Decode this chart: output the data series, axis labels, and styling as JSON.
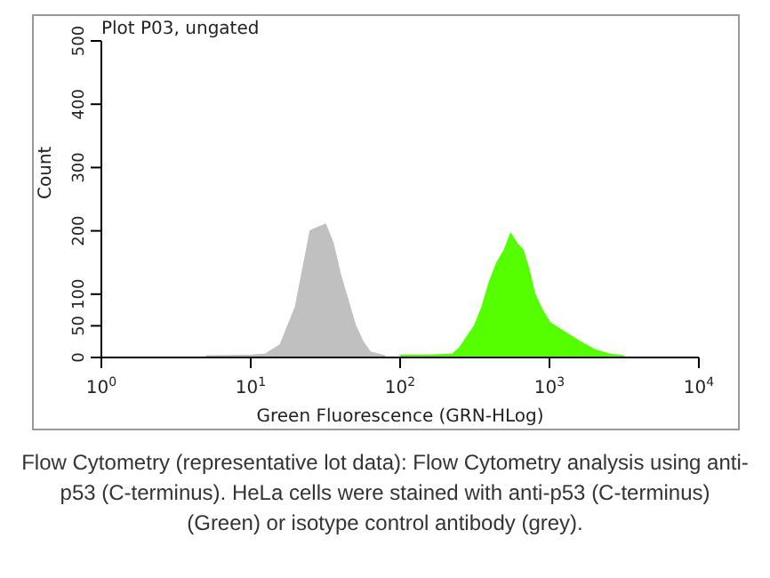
{
  "chart_data": {
    "type": "area",
    "title": "Plot P03, ungated",
    "xlabel": "Green Fluorescence (GRN-HLog)",
    "ylabel": "Count",
    "log": "x",
    "xlim": [
      1,
      10000
    ],
    "xticks": [
      {
        "value": 1,
        "label": "10$^{0}$"
      },
      {
        "value": 10,
        "label": "10$^{1}$"
      },
      {
        "value": 100,
        "label": "10$^{2}$"
      },
      {
        "value": 1000,
        "label": "10$^{3}$"
      },
      {
        "value": 10000,
        "label": "10$^{4}$"
      }
    ],
    "ylim": [
      0,
      500
    ],
    "yticks": [
      0,
      50,
      100,
      200,
      300,
      400,
      500
    ],
    "grid": false,
    "legend": false,
    "series": [
      {
        "color": "#c0c0c0",
        "x": [
          5,
          10,
          12.6,
          15.8,
          20,
          22.4,
          25.1,
          28.2,
          31.6,
          35.5,
          39.8,
          44.7,
          50.1,
          56.2,
          63.1,
          79.4
        ],
        "values": [
          2,
          3,
          5,
          20,
          80,
          140,
          200,
          205,
          210,
          180,
          130,
          90,
          50,
          25,
          8,
          2
        ]
      },
      {
        "color": "#55ff00",
        "x": [
          100,
          158,
          224,
          251,
          316,
          355,
          398,
          447,
          501,
          550,
          603,
          661,
          724,
          794,
          891,
          1000,
          1259,
          1585,
          1995,
          2512,
          3162
        ],
        "values": [
          3,
          3,
          5,
          15,
          50,
          80,
          120,
          150,
          170,
          195,
          180,
          170,
          140,
          100,
          75,
          55,
          40,
          25,
          12,
          5,
          2
        ]
      }
    ],
    "annotations": [
      "Flow Cytometry (representative lot data): Flow Cytometry analysis using anti-p53 (C-terminus). HeLa cells were stained with anti-p53 (C-terminus) (Green) or isotype control antibody (grey)."
    ]
  }
}
